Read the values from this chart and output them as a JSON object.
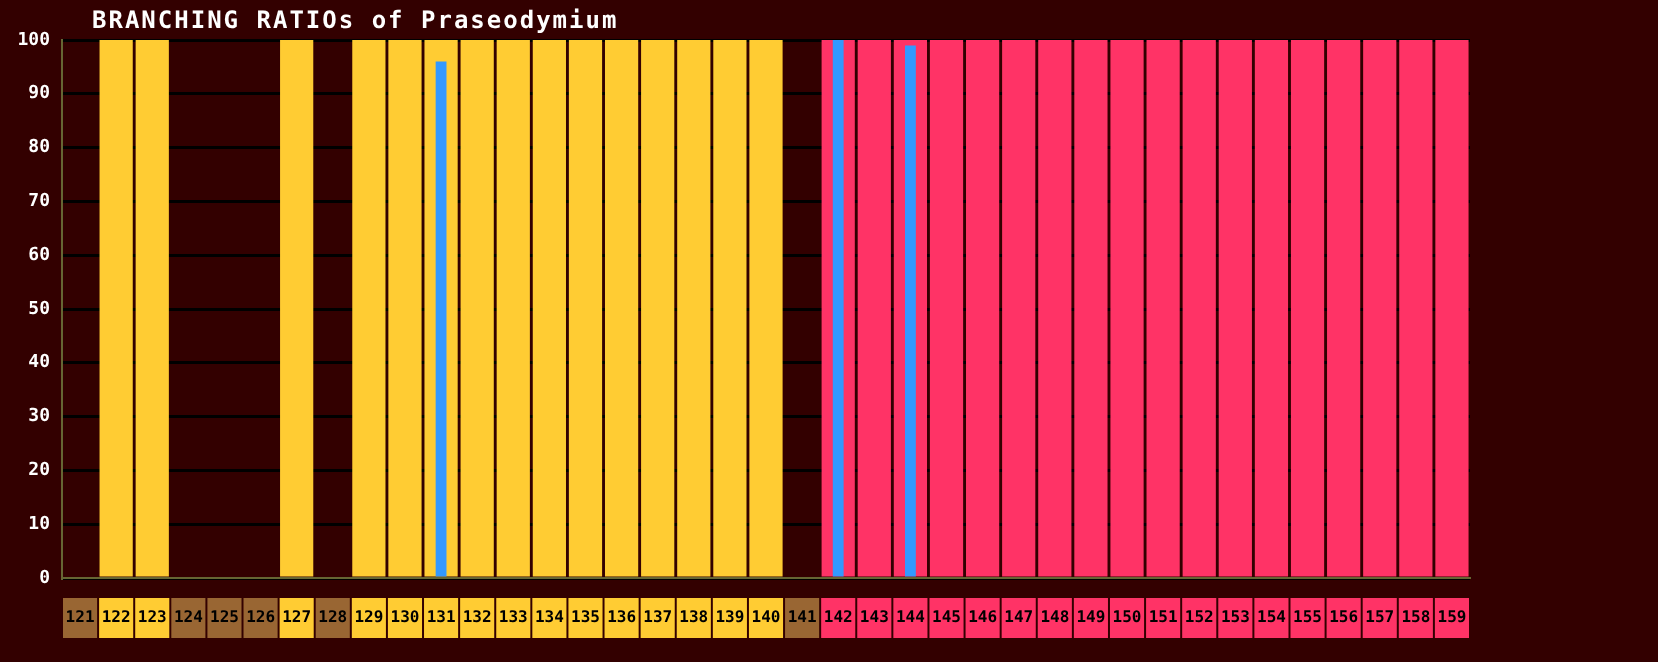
{
  "chart_data": {
    "type": "bar",
    "title": "BRANCHING RATIOs of Praseodymium",
    "categories": [
      "121",
      "122",
      "123",
      "124",
      "125",
      "126",
      "127",
      "128",
      "129",
      "130",
      "131",
      "132",
      "133",
      "134",
      "135",
      "136",
      "137",
      "138",
      "139",
      "140",
      "141",
      "142",
      "143",
      "144",
      "145",
      "146",
      "147",
      "148",
      "149",
      "150",
      "151",
      "152",
      "153",
      "154",
      "155",
      "156",
      "157",
      "158",
      "159"
    ],
    "series": [
      {
        "color": "#ffcc33",
        "values": [
          null,
          100,
          100,
          null,
          null,
          null,
          100,
          null,
          100,
          100,
          100,
          100,
          100,
          100,
          100,
          100,
          100,
          100,
          100,
          100,
          null,
          null,
          null,
          null,
          null,
          null,
          null,
          null,
          null,
          null,
          null,
          null,
          null,
          null,
          null,
          null,
          null,
          null,
          null
        ]
      },
      {
        "color": "#ff3366",
        "values": [
          null,
          null,
          null,
          null,
          null,
          null,
          null,
          null,
          null,
          null,
          null,
          null,
          null,
          null,
          null,
          null,
          null,
          null,
          null,
          null,
          null,
          100,
          100,
          100,
          100,
          100,
          100,
          100,
          100,
          100,
          100,
          100,
          100,
          100,
          100,
          100,
          100,
          100,
          100
        ]
      },
      {
        "color": "#3399ff",
        "values": [
          null,
          null,
          null,
          null,
          null,
          null,
          null,
          null,
          null,
          null,
          96,
          null,
          null,
          null,
          null,
          null,
          null,
          null,
          null,
          null,
          null,
          100,
          null,
          99,
          null,
          null,
          null,
          null,
          null,
          null,
          null,
          null,
          null,
          null,
          null,
          null,
          null,
          null,
          null
        ]
      }
    ],
    "ylim": [
      0,
      100
    ],
    "yticks": [
      0,
      10,
      20,
      30,
      40,
      50,
      60,
      70,
      80,
      90,
      100
    ],
    "grid": "y",
    "legend": false
  }
}
